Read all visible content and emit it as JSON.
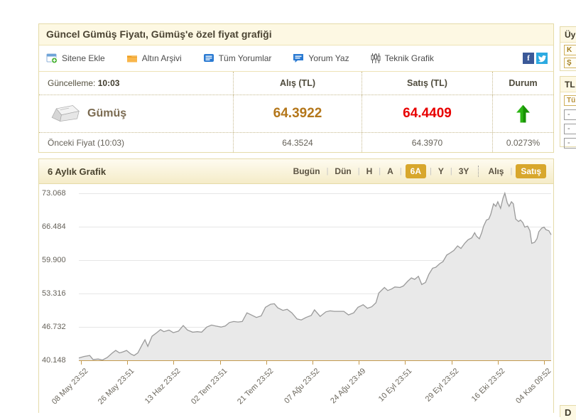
{
  "header": {
    "title": "Güncel Gümüş Fiyatı, Gümüş'e özel fiyat grafiği"
  },
  "toolbar": {
    "items": [
      {
        "label": "Sitene Ekle",
        "icon": "add-widget-icon"
      },
      {
        "label": "Altın Arşivi",
        "icon": "archive-folder-icon"
      },
      {
        "label": "Tüm Yorumlar",
        "icon": "comments-icon"
      },
      {
        "label": "Yorum Yaz",
        "icon": "write-comment-icon"
      },
      {
        "label": "Teknik Grafik",
        "icon": "candlestick-icon"
      }
    ],
    "social": [
      {
        "name": "facebook",
        "glyph": "f"
      },
      {
        "name": "twitter",
        "glyph": "bird"
      }
    ]
  },
  "price_table": {
    "update_label": "Güncelleme:",
    "update_time": "10:03",
    "columns": [
      "Alış (TL)",
      "Satış (TL)",
      "Durum"
    ],
    "instrument": "Gümüş",
    "buy": "64.3922",
    "sell": "64.4409",
    "direction": "up",
    "prev_label": "Önceki Fiyat (10:03)",
    "prev_buy": "64.3524",
    "prev_sell": "64.3970",
    "change_percent": "0.0273%"
  },
  "chart_data": {
    "type": "area",
    "title": "6 Aylık Grafik",
    "range_tabs": [
      {
        "label": "Bugün",
        "active": false
      },
      {
        "label": "Dün",
        "active": false
      },
      {
        "label": "H",
        "active": false
      },
      {
        "label": "A",
        "active": false
      },
      {
        "label": "6A",
        "active": true
      },
      {
        "label": "Y",
        "active": false
      },
      {
        "label": "3Y",
        "active": false
      }
    ],
    "series_tabs": [
      {
        "label": "Alış",
        "active": false
      },
      {
        "label": "Satış",
        "active": true
      }
    ],
    "y_ticks": [
      "73.068",
      "66.484",
      "59.900",
      "53.316",
      "46.732",
      "40.148"
    ],
    "ylim": [
      40.148,
      73.068
    ],
    "x_ticks": [
      "08 May 23:52",
      "26 May 23:51",
      "13 Haz 23:52",
      "02 Tem 23:51",
      "21 Tem 23:52",
      "07 Ağu 23:52",
      "24 Ağu 23:49",
      "10 Eyl 23:51",
      "29 Eyl 23:52",
      "16 Eki 23:52",
      "04 Kas 09:52"
    ],
    "grid": true,
    "legend": "none",
    "series": [
      {
        "name": "Satış",
        "points": [
          [
            0,
            40.6
          ],
          [
            0.011,
            40.9
          ],
          [
            0.023,
            41.1
          ],
          [
            0.03,
            40.3
          ],
          [
            0.041,
            40.4
          ],
          [
            0.05,
            40.2
          ],
          [
            0.06,
            40.7
          ],
          [
            0.071,
            41.6
          ],
          [
            0.078,
            42.1
          ],
          [
            0.086,
            41.6
          ],
          [
            0.093,
            41.8
          ],
          [
            0.101,
            42.1
          ],
          [
            0.11,
            41.4
          ],
          [
            0.117,
            41.1
          ],
          [
            0.125,
            41.6
          ],
          [
            0.135,
            43.4
          ],
          [
            0.14,
            44.2
          ],
          [
            0.146,
            42.9
          ],
          [
            0.155,
            44.9
          ],
          [
            0.165,
            45.6
          ],
          [
            0.173,
            46.2
          ],
          [
            0.18,
            45.8
          ],
          [
            0.191,
            46.1
          ],
          [
            0.2,
            45.6
          ],
          [
            0.211,
            45.9
          ],
          [
            0.221,
            47.0
          ],
          [
            0.23,
            46.1
          ],
          [
            0.241,
            45.7
          ],
          [
            0.251,
            45.8
          ],
          [
            0.26,
            45.7
          ],
          [
            0.271,
            46.7
          ],
          [
            0.281,
            47.1
          ],
          [
            0.29,
            46.9
          ],
          [
            0.301,
            46.7
          ],
          [
            0.31,
            46.9
          ],
          [
            0.319,
            47.6
          ],
          [
            0.328,
            47.8
          ],
          [
            0.337,
            47.7
          ],
          [
            0.346,
            47.8
          ],
          [
            0.356,
            49.5
          ],
          [
            0.365,
            49.1
          ],
          [
            0.376,
            48.6
          ],
          [
            0.386,
            48.9
          ],
          [
            0.395,
            50.6
          ],
          [
            0.406,
            51.2
          ],
          [
            0.414,
            51.3
          ],
          [
            0.421,
            50.5
          ],
          [
            0.432,
            50.0
          ],
          [
            0.441,
            50.2
          ],
          [
            0.451,
            49.5
          ],
          [
            0.462,
            48.3
          ],
          [
            0.471,
            48.1
          ],
          [
            0.481,
            48.6
          ],
          [
            0.492,
            49.0
          ],
          [
            0.499,
            50.1
          ],
          [
            0.511,
            48.8
          ],
          [
            0.523,
            49.7
          ],
          [
            0.532,
            49.9
          ],
          [
            0.541,
            49.8
          ],
          [
            0.552,
            49.8
          ],
          [
            0.561,
            49.8
          ],
          [
            0.571,
            49.1
          ],
          [
            0.582,
            49.5
          ],
          [
            0.591,
            50.6
          ],
          [
            0.602,
            51.1
          ],
          [
            0.611,
            50.4
          ],
          [
            0.62,
            50.7
          ],
          [
            0.629,
            51.5
          ],
          [
            0.635,
            53.4
          ],
          [
            0.647,
            54.5
          ],
          [
            0.654,
            53.9
          ],
          [
            0.662,
            54.2
          ],
          [
            0.669,
            54.6
          ],
          [
            0.68,
            54.5
          ],
          [
            0.687,
            54.8
          ],
          [
            0.696,
            55.7
          ],
          [
            0.704,
            56.4
          ],
          [
            0.711,
            56.1
          ],
          [
            0.719,
            56.7
          ],
          [
            0.726,
            55.1
          ],
          [
            0.734,
            55.5
          ],
          [
            0.741,
            57.1
          ],
          [
            0.749,
            58.3
          ],
          [
            0.756,
            58.5
          ],
          [
            0.764,
            59.2
          ],
          [
            0.771,
            59.6
          ],
          [
            0.779,
            60.9
          ],
          [
            0.786,
            61.3
          ],
          [
            0.794,
            61.8
          ],
          [
            0.802,
            62.7
          ],
          [
            0.809,
            62.2
          ],
          [
            0.817,
            63.2
          ],
          [
            0.824,
            63.9
          ],
          [
            0.832,
            64.3
          ],
          [
            0.838,
            65.3
          ],
          [
            0.842,
            64.6
          ],
          [
            0.848,
            64.1
          ],
          [
            0.853,
            65.3
          ],
          [
            0.857,
            66.6
          ],
          [
            0.863,
            67.8
          ],
          [
            0.868,
            68.0
          ],
          [
            0.872,
            68.9
          ],
          [
            0.878,
            71.0
          ],
          [
            0.883,
            70.5
          ],
          [
            0.887,
            71.4
          ],
          [
            0.893,
            70.1
          ],
          [
            0.898,
            72.1
          ],
          [
            0.902,
            73.1
          ],
          [
            0.907,
            71.2
          ],
          [
            0.911,
            70.5
          ],
          [
            0.916,
            71.4
          ],
          [
            0.92,
            71.0
          ],
          [
            0.925,
            68.0
          ],
          [
            0.931,
            67.5
          ],
          [
            0.935,
            67.8
          ],
          [
            0.94,
            67.3
          ],
          [
            0.944,
            66.4
          ],
          [
            0.95,
            66.6
          ],
          [
            0.955,
            65.7
          ],
          [
            0.959,
            63.2
          ],
          [
            0.965,
            63.4
          ],
          [
            0.97,
            64.1
          ],
          [
            0.974,
            65.5
          ],
          [
            0.98,
            66.2
          ],
          [
            0.985,
            66.4
          ],
          [
            0.989,
            65.9
          ],
          [
            0.995,
            65.7
          ],
          [
            1,
            64.9
          ]
        ]
      }
    ]
  },
  "sidebar": {
    "login_panel": {
      "title_fragment": "Üy",
      "field_fragments": [
        "K",
        "Ş"
      ]
    },
    "tl_panel": {
      "title_fragment": "TL",
      "button_fragment": "Tü",
      "rows": [
        "-",
        "-",
        "-"
      ]
    },
    "bottom_panel": {
      "title_fragment": "D"
    }
  },
  "colors": {
    "accent_gold": "#d8a72c",
    "buy_text": "#b4771b",
    "sell_text": "#e80000",
    "up_green": "#1da510",
    "area_fill": "#e9e9e9",
    "line": "#9a9a9a",
    "axis_gold": "#c49a4e",
    "panel_border": "#e5dba9"
  }
}
